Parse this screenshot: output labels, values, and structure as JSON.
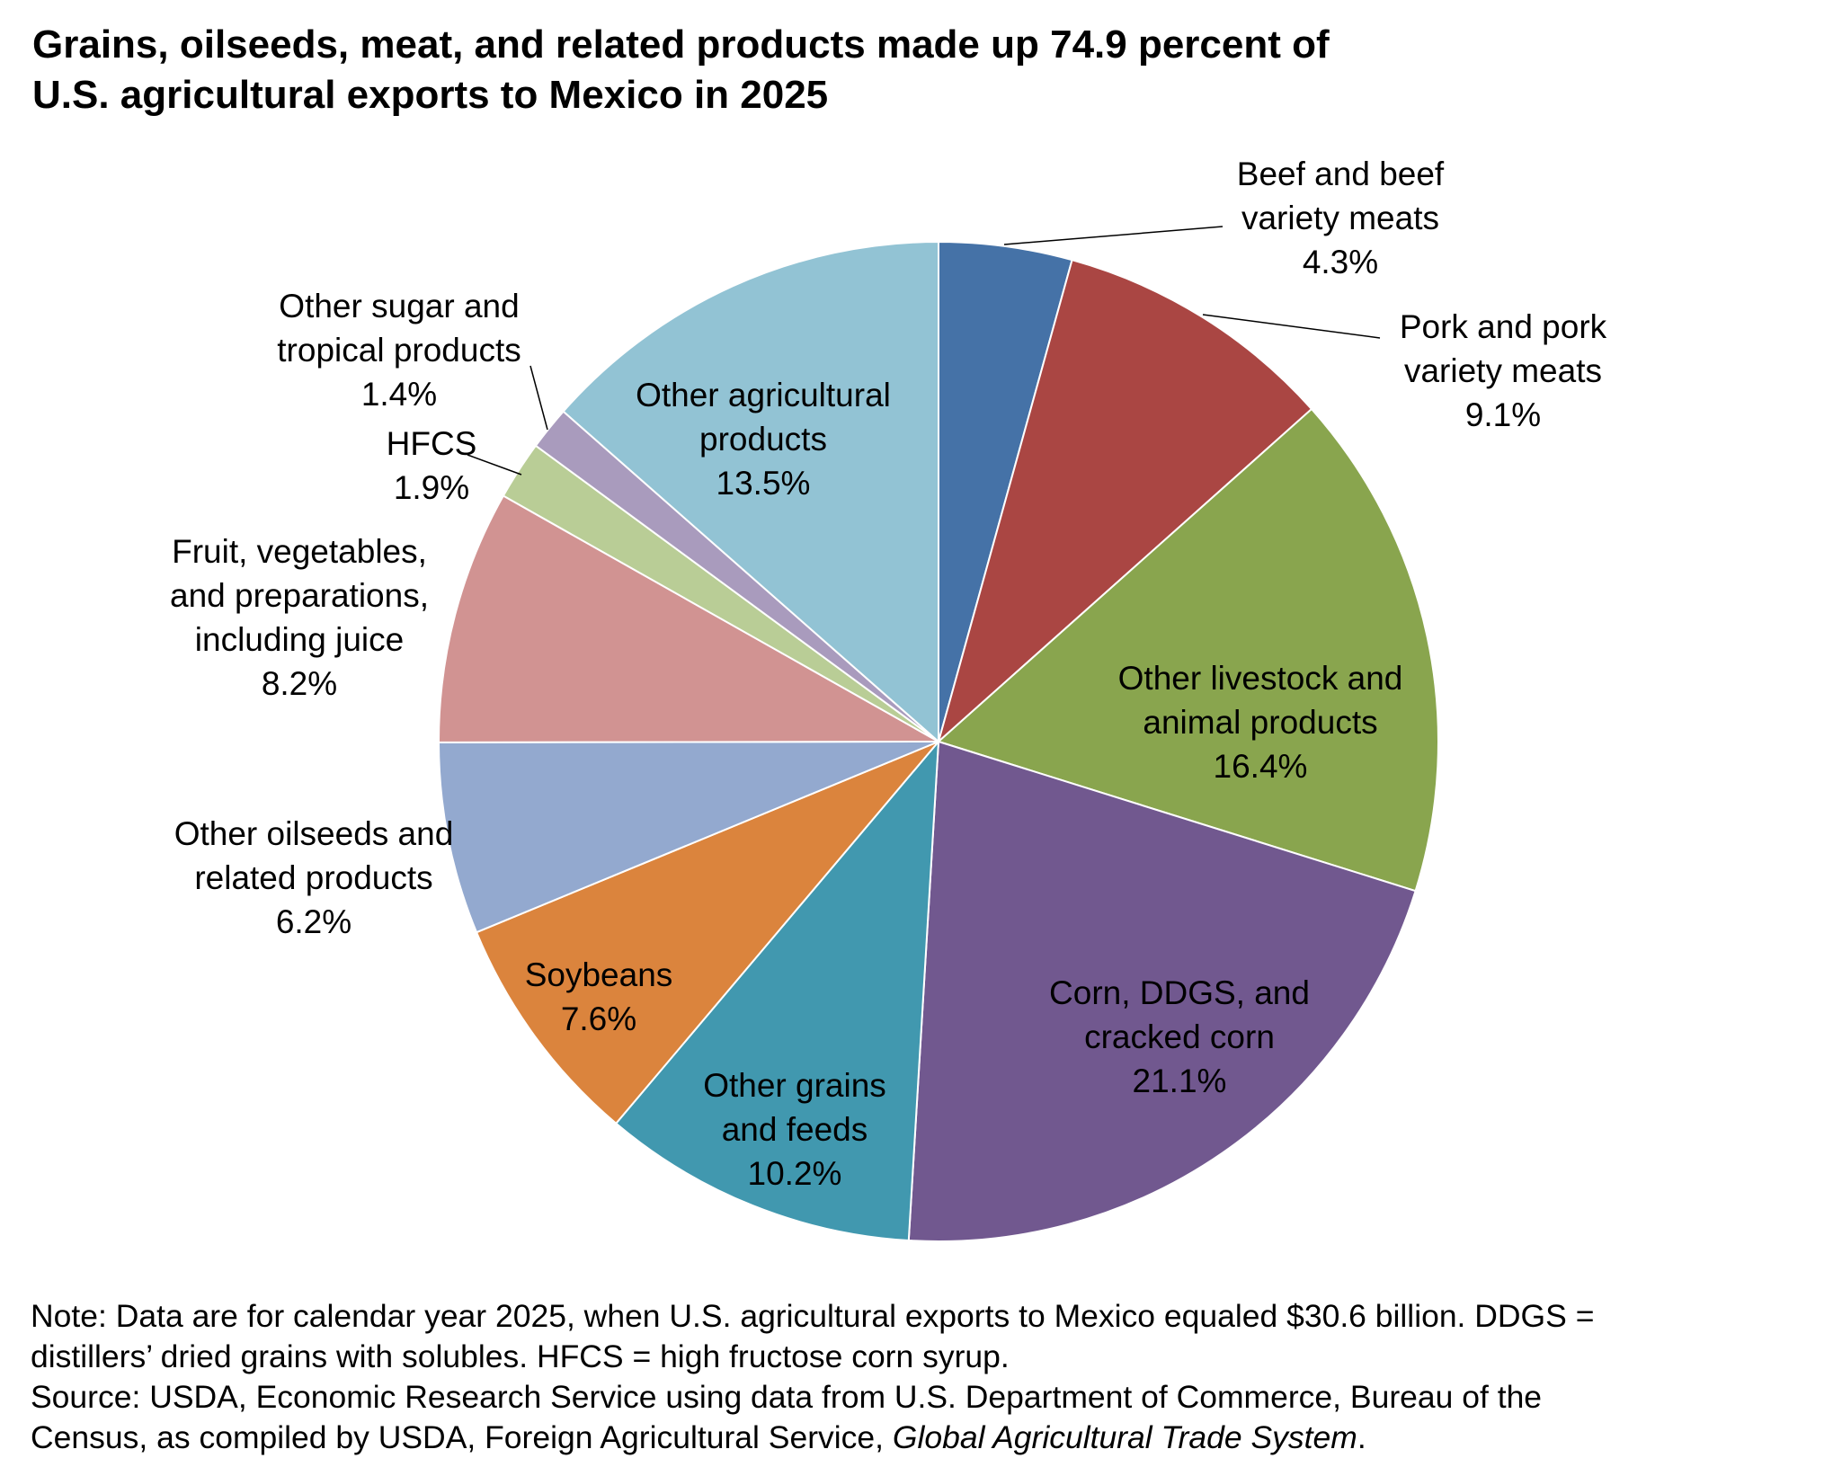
{
  "title_lines": [
    "Grains, oilseeds, meat, and related products made up 74.9 percent of",
    "U.S. agricultural exports to Mexico in 2025"
  ],
  "chart_data": {
    "type": "pie",
    "title": "Grains, oilseeds, meat, and related products made up 74.9 percent of U.S. agricultural exports to Mexico in 2025",
    "start": "12 o'clock",
    "direction": "clockwise",
    "slices": [
      {
        "label_lines": [
          "Beef and beef",
          "variety meats"
        ],
        "value": 4.3,
        "value_label": "4.3%",
        "color": "#4572a7"
      },
      {
        "label_lines": [
          "Pork and pork",
          "variety meats"
        ],
        "value": 9.1,
        "value_label": "9.1%",
        "color": "#aa4643"
      },
      {
        "label_lines": [
          "Other livestock and",
          "animal products"
        ],
        "value": 16.4,
        "value_label": "16.4%",
        "color": "#89a54e"
      },
      {
        "label_lines": [
          "Corn, DDGS, and",
          "cracked corn"
        ],
        "value": 21.1,
        "value_label": "21.1%",
        "color": "#71588f"
      },
      {
        "label_lines": [
          "Other grains",
          "and feeds"
        ],
        "value": 10.2,
        "value_label": "10.2%",
        "color": "#4198af"
      },
      {
        "label_lines": [
          "Soybeans"
        ],
        "value": 7.6,
        "value_label": "7.6%",
        "color": "#db843d"
      },
      {
        "label_lines": [
          "Other oilseeds and",
          "related products"
        ],
        "value": 6.2,
        "value_label": "6.2%",
        "color": "#93a9cf"
      },
      {
        "label_lines": [
          "Fruit, vegetables,",
          "and preparations,",
          "including juice"
        ],
        "value": 8.2,
        "value_label": "8.2%",
        "color": "#d19392"
      },
      {
        "label_lines": [
          "HFCS"
        ],
        "value": 1.9,
        "value_label": "1.9%",
        "color": "#b9cd96"
      },
      {
        "label_lines": [
          "Other sugar and",
          "tropical products"
        ],
        "value": 1.4,
        "value_label": "1.4%",
        "color": "#a99bbd"
      },
      {
        "label_lines": [
          "Other agricultural",
          "products"
        ],
        "value": 13.5,
        "value_label": "13.5%",
        "color": "#92c3d4"
      }
    ]
  },
  "note": {
    "line1": "Note: Data are for calendar year 2025, when U.S. agricultural exports to Mexico equaled $30.6 billion. DDGS =",
    "line2": "distillers’ dried grains with solubles. HFCS = high fructose corn syrup.",
    "line3": "Source: USDA, Economic Research Service using data from U.S. Department of Commerce, Bureau of the",
    "line4_prefix": "Census, as compiled by USDA, Foreign Agricultural Service, ",
    "line4_italic": "Global Agricultural Trade System",
    "line4_suffix": "."
  }
}
